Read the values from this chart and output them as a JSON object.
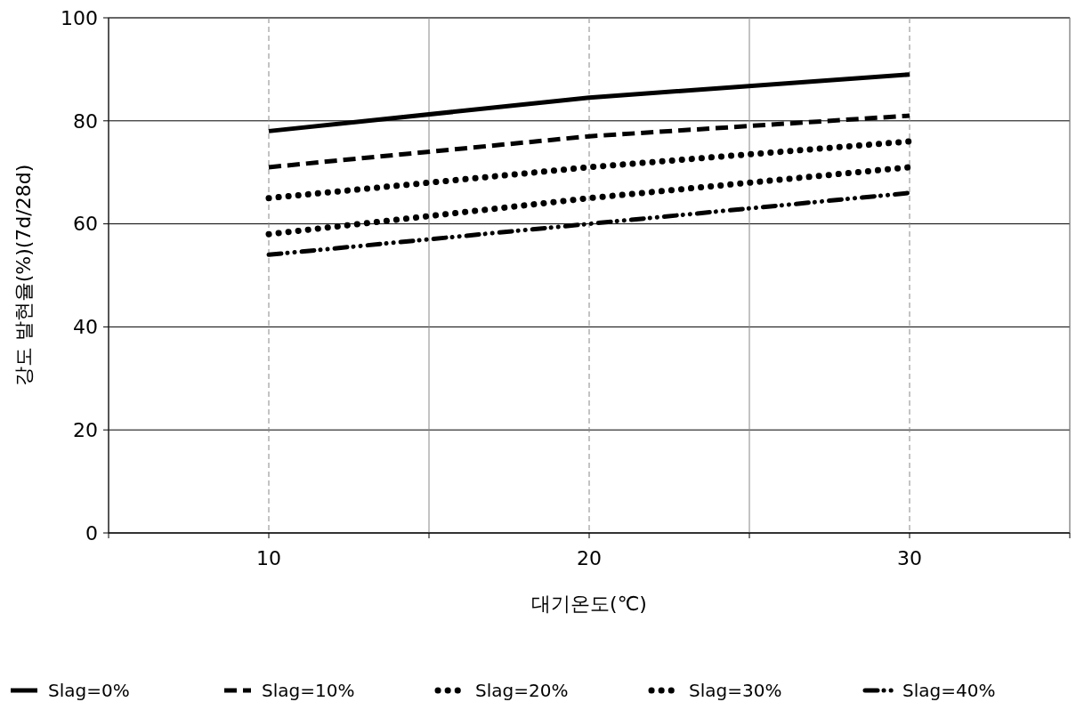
{
  "chart_data": {
    "type": "line",
    "xlabel": "대기온도(℃)",
    "ylabel": "강도 발현율(%)(7d/28d)",
    "x": [
      10,
      20,
      30
    ],
    "series": [
      {
        "name": "Slag=0%",
        "color": "#000000",
        "line_style": "solid",
        "values": [
          78,
          84.5,
          89
        ]
      },
      {
        "name": "Slag=10%",
        "color": "#000000",
        "line_style": "dashed",
        "values": [
          71,
          77,
          81
        ]
      },
      {
        "name": "Slag=20%",
        "color": "#000000",
        "line_style": "dotted",
        "values": [
          65,
          71,
          76
        ]
      },
      {
        "name": "Slag=30%",
        "color": "#000000",
        "line_style": "dotted",
        "values": [
          58,
          65,
          71
        ]
      },
      {
        "name": "Slag=40%",
        "color": "#000000",
        "line_style": "dashdot",
        "values": [
          54,
          60,
          66
        ]
      }
    ],
    "xlim": [
      5,
      35
    ],
    "xticks": [
      {
        "value": 5,
        "label": null
      },
      10,
      {
        "value": 15,
        "label": null
      },
      20,
      {
        "value": 25,
        "label": null
      },
      30,
      {
        "value": 35,
        "label": null
      }
    ],
    "ylim": [
      0,
      100
    ],
    "yticks": [
      0,
      20,
      40,
      60,
      80,
      100
    ],
    "grid": true,
    "legend": "bottom",
    "marker": "none"
  }
}
